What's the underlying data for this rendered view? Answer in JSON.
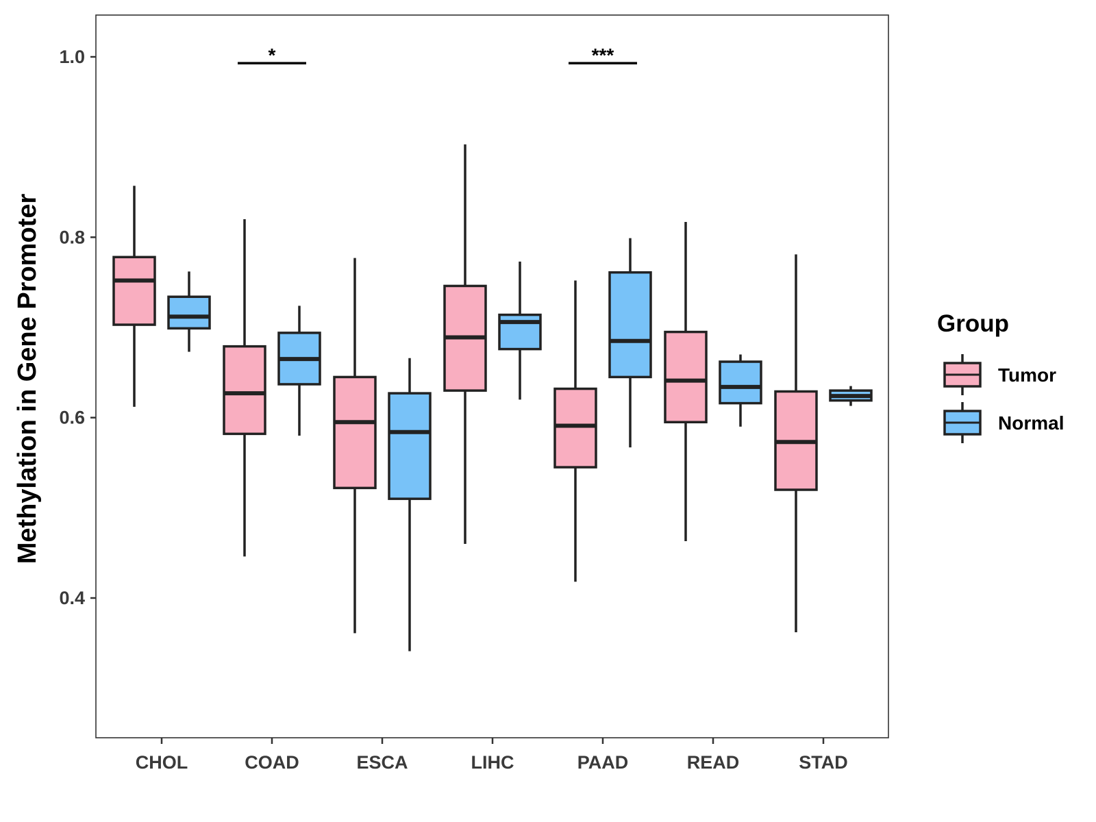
{
  "chart_data": {
    "type": "boxplot",
    "title": "",
    "xlabel": "",
    "ylabel": "Methylation in Gene Promoter",
    "ylim": [
      0.25,
      1.05
    ],
    "yticks": [
      0.4,
      0.6,
      0.8,
      1.0
    ],
    "ytick_labels": [
      "0.4",
      "0.6",
      "0.8",
      "1.0"
    ],
    "grid": false,
    "categories": [
      "CHOL",
      "COAD",
      "ESCA",
      "LIHC",
      "PAAD",
      "READ",
      "STAD"
    ],
    "series": [
      {
        "name": "Tumor",
        "color": "#F9AEC0",
        "boxes": [
          {
            "min": 0.612,
            "q1": 0.703,
            "median": 0.752,
            "q3": 0.778,
            "max": 0.857
          },
          {
            "min": 0.446,
            "q1": 0.582,
            "median": 0.627,
            "q3": 0.679,
            "max": 0.82
          },
          {
            "min": 0.361,
            "q1": 0.522,
            "median": 0.595,
            "q3": 0.645,
            "max": 0.777
          },
          {
            "min": 0.46,
            "q1": 0.63,
            "median": 0.689,
            "q3": 0.746,
            "max": 0.903
          },
          {
            "min": 0.418,
            "q1": 0.545,
            "median": 0.591,
            "q3": 0.632,
            "max": 0.752
          },
          {
            "min": 0.463,
            "q1": 0.595,
            "median": 0.641,
            "q3": 0.695,
            "max": 0.817
          },
          {
            "min": 0.362,
            "q1": 0.52,
            "median": 0.573,
            "q3": 0.629,
            "max": 0.781
          }
        ]
      },
      {
        "name": "Normal",
        "color": "#78C2F8",
        "boxes": [
          {
            "min": 0.673,
            "q1": 0.699,
            "median": 0.712,
            "q3": 0.734,
            "max": 0.762
          },
          {
            "min": 0.58,
            "q1": 0.637,
            "median": 0.665,
            "q3": 0.694,
            "max": 0.724
          },
          {
            "min": 0.341,
            "q1": 0.51,
            "median": 0.584,
            "q3": 0.627,
            "max": 0.666
          },
          {
            "min": 0.62,
            "q1": 0.676,
            "median": 0.706,
            "q3": 0.714,
            "max": 0.773
          },
          {
            "min": 0.567,
            "q1": 0.645,
            "median": 0.685,
            "q3": 0.761,
            "max": 0.799
          },
          {
            "min": 0.59,
            "q1": 0.616,
            "median": 0.634,
            "q3": 0.662,
            "max": 0.67
          },
          {
            "min": 0.613,
            "q1": 0.619,
            "median": 0.624,
            "q3": 0.63,
            "max": 0.635
          }
        ]
      }
    ],
    "significance": [
      {
        "category": "COAD",
        "label": "*",
        "y": 0.993
      },
      {
        "category": "PAAD",
        "label": "***",
        "y": 0.993
      }
    ],
    "legend": {
      "title": "Group",
      "placement": "right",
      "entries": [
        "Tumor",
        "Normal"
      ]
    }
  }
}
